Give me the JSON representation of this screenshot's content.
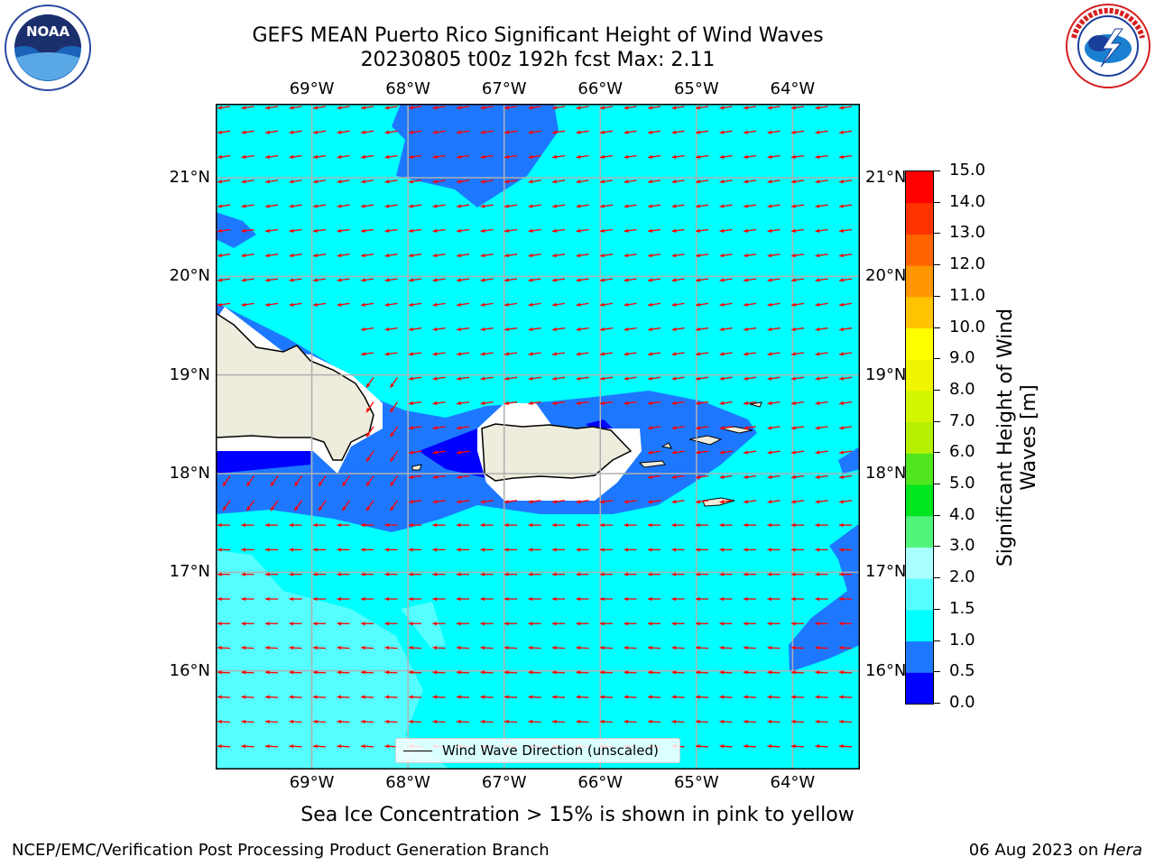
{
  "title": {
    "line1": "GEFS MEAN Puerto Rico Significant Height of Wind Waves",
    "line2": "20230805 t00z 192h fcst   Max: 2.11"
  },
  "logos": {
    "left": {
      "name": "noaa-logo",
      "text": "NOAA",
      "ring_text": "NATIONAL OCEANIC AND ATMOSPHERIC ADMINISTRATION · U.S. DEPARTMENT OF COMMERCE"
    },
    "right": {
      "name": "nws-logo",
      "ring_text": "NATIONAL WEATHER SERVICE"
    }
  },
  "map": {
    "lon_range": [
      -70.0,
      -63.3
    ],
    "lat_range": [
      15.0,
      21.75
    ],
    "lon_labels": [
      "69°W",
      "68°W",
      "67°W",
      "66°W",
      "65°W",
      "64°W"
    ],
    "lat_labels": [
      "21°N",
      "20°N",
      "19°N",
      "18°N",
      "17°N",
      "16°N"
    ],
    "legend_label": "Wind Wave Direction (unscaled)",
    "arrow_color": "#ff0000",
    "land_color": "#eeecdc",
    "grid": true
  },
  "colorbar": {
    "title": "Significant Height of Wind Waves [m]",
    "title_line1": "Significant Height of Wind",
    "title_line2": "Waves [m]",
    "ticks": [
      "15.0",
      "14.0",
      "13.0",
      "12.0",
      "11.0",
      "10.0",
      "9.0",
      "8.0",
      "7.0",
      "6.0",
      "5.0",
      "4.0",
      "3.0",
      "2.0",
      "1.5",
      "1.0",
      "0.5",
      "0.0"
    ],
    "bins": [
      {
        "from": 0.0,
        "to": 0.5,
        "color": "#0000ff"
      },
      {
        "from": 0.5,
        "to": 1.0,
        "color": "#1e78ff"
      },
      {
        "from": 1.0,
        "to": 1.5,
        "color": "#00ffff"
      },
      {
        "from": 1.5,
        "to": 2.0,
        "color": "#55ffff"
      },
      {
        "from": 2.0,
        "to": 3.0,
        "color": "#aaffff"
      },
      {
        "from": 3.0,
        "to": 4.0,
        "color": "#50f57a"
      },
      {
        "from": 4.0,
        "to": 5.0,
        "color": "#00e61e"
      },
      {
        "from": 5.0,
        "to": 6.0,
        "color": "#50e61e"
      },
      {
        "from": 6.0,
        "to": 7.0,
        "color": "#b4f000"
      },
      {
        "from": 7.0,
        "to": 8.0,
        "color": "#d2f500"
      },
      {
        "from": 8.0,
        "to": 9.0,
        "color": "#f0f500"
      },
      {
        "from": 9.0,
        "to": 10.0,
        "color": "#ffff00"
      },
      {
        "from": 10.0,
        "to": 11.0,
        "color": "#ffc300"
      },
      {
        "from": 11.0,
        "to": 12.0,
        "color": "#ff9600"
      },
      {
        "from": 12.0,
        "to": 13.0,
        "color": "#ff6400"
      },
      {
        "from": 13.0,
        "to": 14.0,
        "color": "#ff3200"
      },
      {
        "from": 14.0,
        "to": 15.0,
        "color": "#ff0000"
      }
    ]
  },
  "caption": "Sea Ice Concentration > 15% is shown in pink to yellow",
  "footer": {
    "left": "NCEP/EMC/Verification Post Processing Product Generation Branch",
    "right_date": "06 Aug 2023 on ",
    "right_host": "Hera"
  }
}
